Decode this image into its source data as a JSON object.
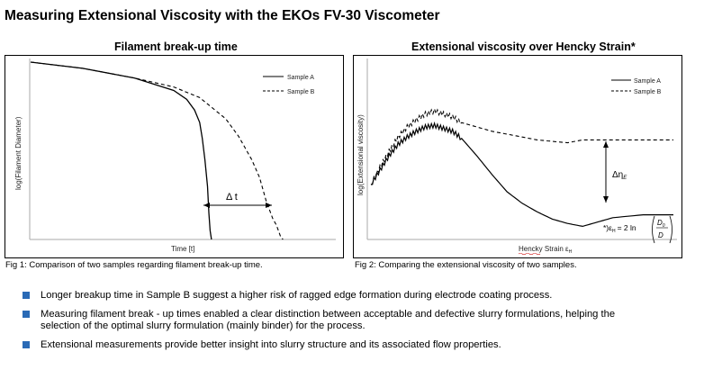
{
  "page": {
    "title": "Measuring Extensional Viscosity with the EKOs FV-30 Viscometer"
  },
  "figures": [
    {
      "title": "Filament break-up time",
      "caption": "Fig 1: Comparison of two samples regarding filament break-up time.",
      "xlabel": "Time [t]",
      "ylabel": "log(Filament Diameter)",
      "annotation": "Δ t",
      "legend": [
        "Sample A",
        "Sample B"
      ]
    },
    {
      "title": "Extensional viscosity over Hencky Strain*",
      "caption": "Fig 2: Comparing the extensional viscosity of two samples.",
      "xlabel": "Hencky Strain ε",
      "xlabel_sub": "H",
      "ylabel": "log(Extensional viscosity)",
      "annotation": "Δη",
      "annotation_sub": "E",
      "formula_prefix": "*)ε",
      "formula_sub": "H",
      "formula_body": "= 2 ln",
      "formula_num": "D",
      "formula_num_sub": "0",
      "formula_den": "D",
      "legend": [
        "Sample A",
        "Sample B"
      ]
    }
  ],
  "bullets": [
    "Longer breakup time in Sample B suggest a higher risk of ragged edge formation during electrode coating process.",
    "Measuring filament break - up times enabled a clear distinction between acceptable and defective slurry formulations, helping the selection of the optimal slurry formulation (mainly binder) for the process.",
    "Extensional measurements provide better insight into slurry structure and its associated flow properties."
  ],
  "chart_data": [
    {
      "type": "line",
      "title": "Filament break-up time",
      "xlabel": "Time [t]",
      "ylabel": "log(Filament Diameter)",
      "legend_position": "top-right",
      "grid": false,
      "series": [
        {
          "name": "Sample A",
          "style": "solid",
          "x": [
            0,
            0.2,
            0.4,
            0.55,
            0.6,
            0.63,
            0.65,
            0.66,
            0.67,
            0.68,
            0.685,
            0.69,
            0.695
          ],
          "y": [
            1.0,
            0.965,
            0.91,
            0.84,
            0.79,
            0.73,
            0.66,
            0.57,
            0.45,
            0.3,
            0.15,
            0.05,
            0.0
          ]
        },
        {
          "name": "Sample B",
          "style": "dashed",
          "x": [
            0,
            0.2,
            0.4,
            0.55,
            0.65,
            0.75,
            0.8,
            0.85,
            0.88,
            0.905,
            0.93,
            0.945,
            0.96,
            0.97
          ],
          "y": [
            1.0,
            0.965,
            0.91,
            0.86,
            0.8,
            0.68,
            0.58,
            0.45,
            0.35,
            0.22,
            0.12,
            0.08,
            0.02,
            0.0
          ]
        }
      ]
    },
    {
      "type": "line",
      "title": "Extensional viscosity over Hencky Strain*",
      "xlabel": "Hencky Strain εH",
      "ylabel": "log(Extensional viscosity)",
      "legend_position": "top-right",
      "grid": false,
      "series": [
        {
          "name": "Sample A",
          "style": "solid",
          "x": [
            0,
            0.03,
            0.06,
            0.09,
            0.12,
            0.15,
            0.18,
            0.21,
            0.24,
            0.27,
            0.3,
            0.35,
            0.4,
            0.45,
            0.5,
            0.55,
            0.6,
            0.65,
            0.7,
            0.75,
            0.8,
            0.9,
            1.0
          ],
          "y": [
            0.35,
            0.45,
            0.55,
            0.63,
            0.68,
            0.72,
            0.75,
            0.76,
            0.74,
            0.72,
            0.67,
            0.55,
            0.42,
            0.3,
            0.22,
            0.16,
            0.11,
            0.08,
            0.06,
            0.09,
            0.12,
            0.14,
            0.14
          ]
        },
        {
          "name": "Sample B",
          "style": "dashed",
          "x": [
            0,
            0.03,
            0.06,
            0.09,
            0.12,
            0.15,
            0.18,
            0.21,
            0.24,
            0.27,
            0.3,
            0.35,
            0.4,
            0.45,
            0.5,
            0.55,
            0.6,
            0.65,
            0.7,
            0.75,
            0.8,
            0.9,
            1.0
          ],
          "y": [
            0.35,
            0.47,
            0.58,
            0.68,
            0.75,
            0.8,
            0.84,
            0.86,
            0.84,
            0.82,
            0.78,
            0.75,
            0.72,
            0.7,
            0.68,
            0.66,
            0.65,
            0.64,
            0.66,
            0.66,
            0.66,
            0.66,
            0.66
          ]
        }
      ]
    }
  ]
}
